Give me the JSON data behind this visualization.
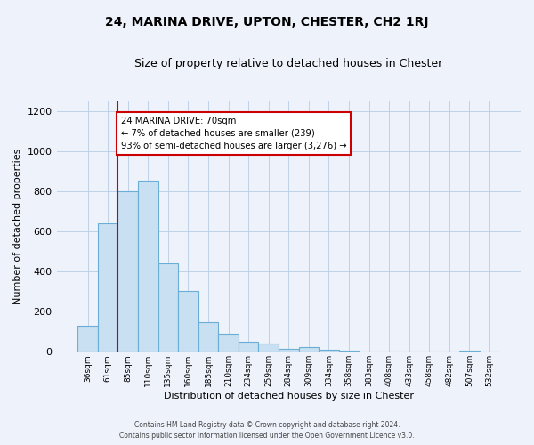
{
  "title": "24, MARINA DRIVE, UPTON, CHESTER, CH2 1RJ",
  "subtitle": "Size of property relative to detached houses in Chester",
  "xlabel": "Distribution of detached houses by size in Chester",
  "ylabel": "Number of detached properties",
  "bar_labels": [
    "36sqm",
    "61sqm",
    "85sqm",
    "110sqm",
    "135sqm",
    "160sqm",
    "185sqm",
    "210sqm",
    "234sqm",
    "259sqm",
    "284sqm",
    "309sqm",
    "334sqm",
    "358sqm",
    "383sqm",
    "408sqm",
    "433sqm",
    "458sqm",
    "482sqm",
    "507sqm",
    "532sqm"
  ],
  "bar_values": [
    130,
    640,
    800,
    855,
    440,
    305,
    150,
    90,
    52,
    42,
    15,
    22,
    10,
    5,
    2,
    0,
    0,
    0,
    0,
    5,
    0
  ],
  "bar_color": "#c9dff2",
  "bar_edge_color": "#6aaed6",
  "vline_x": 1.5,
  "vline_color": "#cc0000",
  "ylim": [
    0,
    1250
  ],
  "yticks": [
    0,
    200,
    400,
    600,
    800,
    1000,
    1200
  ],
  "annotation_title": "24 MARINA DRIVE: 70sqm",
  "annotation_line1": "← 7% of detached houses are smaller (239)",
  "annotation_line2": "93% of semi-detached houses are larger (3,276) →",
  "annotation_box_edge": "#cc0000",
  "background_color": "#eef2fb",
  "grid_color": "#b8cce4",
  "footer_line1": "Contains HM Land Registry data © Crown copyright and database right 2024.",
  "footer_line2": "Contains public sector information licensed under the Open Government Licence v3.0."
}
